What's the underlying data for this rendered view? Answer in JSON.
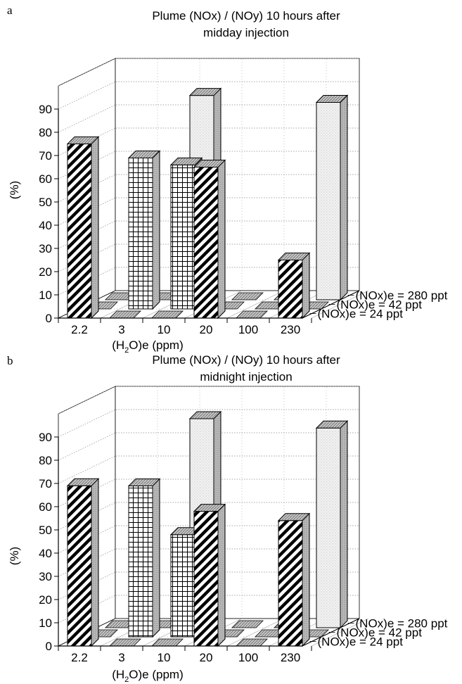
{
  "colors": {
    "ink": "#000000",
    "side_face": "#b9b9b9",
    "top_face": "#bdbdbd",
    "dotted_face": "#f2f2f2",
    "grid": "#888888"
  },
  "chart_data": [
    {
      "panel_label": "a",
      "type": "bar",
      "title_line1": "Plume (NOx) / (NOy) 10 hours after",
      "title_line2": "midday injection",
      "ylabel": "(%)",
      "xlabel_prefix": "(H",
      "xlabel_sub": "2",
      "xlabel_suffix": "O)e (ppm)",
      "ylim": [
        0,
        90
      ],
      "y_ticks": [
        "0",
        "10",
        "20",
        "30",
        "40",
        "50",
        "60",
        "70",
        "80",
        "90"
      ],
      "categories": [
        "2.2",
        "3",
        "10",
        "20",
        "100",
        "230"
      ],
      "grid": true,
      "legend_placement": "right",
      "series": [
        {
          "name": "(NOx)e = 24 ppt",
          "pattern": "hatch",
          "values": [
            75,
            0,
            0,
            65,
            0,
            25
          ]
        },
        {
          "name": "(NOx)e = 42 ppt",
          "pattern": "grid",
          "values": [
            0,
            65,
            62,
            0,
            0,
            0
          ]
        },
        {
          "name": "(NOx)e = 280 ppt",
          "pattern": "dots",
          "values": [
            0,
            0,
            88,
            0,
            0,
            85
          ]
        }
      ]
    },
    {
      "panel_label": "b",
      "type": "bar",
      "title_line1": "Plume (NOx) / (NOy) 10 hours after",
      "title_line2": "midnight injection",
      "ylabel": "(%)",
      "xlabel_prefix": "(H",
      "xlabel_sub": "2",
      "xlabel_suffix": "O)e (ppm)",
      "ylim": [
        0,
        90
      ],
      "y_ticks": [
        "0",
        "10",
        "20",
        "30",
        "40",
        "50",
        "60",
        "70",
        "80",
        "90"
      ],
      "categories": [
        "2.2",
        "3",
        "10",
        "20",
        "100",
        "230"
      ],
      "grid": true,
      "legend_placement": "right",
      "series": [
        {
          "name": "(NOx)e = 24 ppt",
          "pattern": "hatch",
          "values": [
            69,
            0,
            0,
            58,
            0,
            54
          ]
        },
        {
          "name": "(NOx)e = 42 ppt",
          "pattern": "grid",
          "values": [
            0,
            65,
            44,
            0,
            0,
            0
          ]
        },
        {
          "name": "(NOx)e = 280 ppt",
          "pattern": "dots",
          "values": [
            0,
            0,
            90,
            0,
            0,
            86
          ]
        }
      ]
    }
  ]
}
